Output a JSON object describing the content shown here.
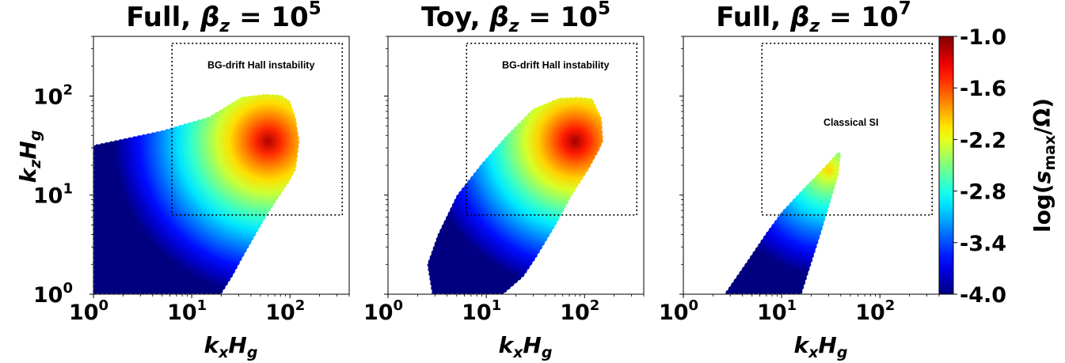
{
  "chart_data": {
    "type": "heatmap",
    "x_scale": "log",
    "y_scale": "log",
    "xlim": [
      1,
      400
    ],
    "ylim": [
      1,
      400
    ],
    "x_ticks": [
      {
        "base": "10",
        "exp": "0",
        "value": 1
      },
      {
        "base": "10",
        "exp": "1",
        "value": 10
      },
      {
        "base": "10",
        "exp": "2",
        "value": 100
      }
    ],
    "y_ticks": [
      {
        "base": "10",
        "exp": "0",
        "value": 1
      },
      {
        "base": "10",
        "exp": "1",
        "value": 10
      },
      {
        "base": "10",
        "exp": "2",
        "value": 100
      }
    ],
    "xlabel": {
      "main": "k",
      "sub_x": "x",
      "mid": "H",
      "sub_g": "g"
    },
    "ylabel": {
      "main": "k",
      "sub_x": "z",
      "mid": "H",
      "sub_g": "g"
    },
    "colorbar": {
      "label": "log(s_max/Ω)",
      "label_parts": {
        "pre": "log(",
        "s": "s",
        "sub": "max",
        "post": "/Ω)"
      },
      "ticks": [
        "-1.0",
        "-1.6",
        "-2.2",
        "-2.8",
        "-3.4",
        "-4.0"
      ],
      "tick_values": [
        -1.0,
        -1.6,
        -2.2,
        -2.8,
        -3.4,
        -4.0
      ],
      "range": [
        -4.0,
        -1.0
      ],
      "colormap": "jet"
    },
    "panels": [
      {
        "title_prefix": "Full, ",
        "beta_sub": "z",
        "eq": " = 10",
        "exp": "5",
        "annotation": "BG-drift Hall instability",
        "box_x": [
          6.3,
          340
        ],
        "box_y": [
          6.3,
          340
        ],
        "region_top": [
          [
            1,
            32
          ],
          [
            5,
            45
          ],
          [
            15,
            62
          ],
          [
            32,
            98
          ],
          [
            55,
            105
          ],
          [
            80,
            103
          ],
          [
            100,
            90
          ],
          [
            115,
            60
          ],
          [
            125,
            35
          ],
          [
            115,
            18
          ]
        ],
        "region_bottom": [
          [
            1,
            1
          ],
          [
            20,
            1
          ],
          [
            26,
            1.5
          ],
          [
            32,
            2.2
          ],
          [
            45,
            4
          ],
          [
            60,
            6.5
          ],
          [
            80,
            10
          ],
          [
            100,
            14
          ]
        ],
        "peak": [
          60,
          35
        ],
        "peak_value": -1.15
      },
      {
        "title_prefix": "Toy, ",
        "beta_sub": "z",
        "eq": " = 10",
        "exp": "5",
        "annotation": "BG-drift Hall instability",
        "box_x": [
          6.3,
          340
        ],
        "box_y": [
          6.3,
          340
        ],
        "region_top": [
          [
            2.5,
            2
          ],
          [
            3.2,
            4
          ],
          [
            5,
            10
          ],
          [
            9,
            21
          ],
          [
            16,
            40
          ],
          [
            30,
            75
          ],
          [
            55,
            96
          ],
          [
            85,
            98
          ],
          [
            120,
            95
          ],
          [
            150,
            60
          ],
          [
            155,
            35
          ]
        ],
        "region_bottom": [
          [
            2.8,
            1
          ],
          [
            5,
            1
          ],
          [
            15,
            1
          ],
          [
            24,
            1.5
          ],
          [
            32,
            2.3
          ],
          [
            50,
            4.8
          ],
          [
            75,
            10
          ],
          [
            110,
            18
          ],
          [
            140,
            28
          ]
        ],
        "peak": [
          80,
          35
        ],
        "peak_value": -1.1
      },
      {
        "title_prefix": "Full, ",
        "beta_sub": "z",
        "eq": " = 10",
        "exp": "7",
        "annotation": "Classical SI",
        "box_x": [
          6.3,
          340
        ],
        "box_y": [
          6.3,
          340
        ],
        "region_top": [
          [
            2.6,
            1
          ],
          [
            4.5,
            2.2
          ],
          [
            7,
            4.2
          ],
          [
            10,
            6.8
          ],
          [
            15,
            10.5
          ],
          [
            22,
            15.5
          ],
          [
            30,
            21.5
          ],
          [
            37,
            27
          ],
          [
            40,
            27
          ]
        ],
        "region_bottom": [
          [
            16,
            1
          ],
          [
            20,
            2
          ],
          [
            25,
            4
          ],
          [
            32,
            9
          ],
          [
            38,
            16
          ],
          [
            40,
            26
          ]
        ],
        "peak": [
          30,
          18
        ],
        "peak_value": -2.0
      }
    ]
  }
}
